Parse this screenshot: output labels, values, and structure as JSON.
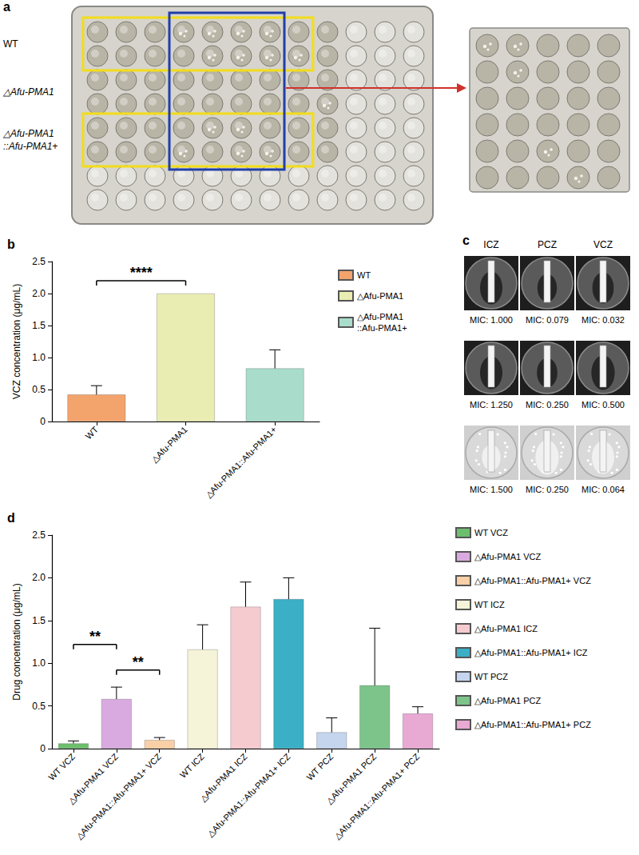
{
  "panel_a": {
    "panel": "a",
    "rows": [
      "WT",
      "△Afu-PMA1",
      "△Afu-PMA1::Afu-PMA1+"
    ]
  },
  "panel_c": {
    "panel": "c",
    "columns": [
      "ICZ",
      "PCZ",
      "VCZ"
    ],
    "rows": [
      [
        "MIC: 1.000",
        "MIC: 0.079",
        "MIC: 0.032"
      ],
      [
        "MIC: 1.250",
        "MIC: 0.250",
        "MIC: 0.500"
      ],
      [
        "MIC: 1.500",
        "MIC: 0.250",
        "MIC: 0.064"
      ]
    ]
  },
  "chart_data": [
    {
      "type": "bar",
      "panel": "b",
      "y_label": "VCZ concentration (μg/mL)",
      "categories": [
        "WT",
        "△Afu-PMA1",
        "△Afu-PMA1::Afu-PMA1+"
      ],
      "values": [
        0.42,
        2.0,
        0.83
      ],
      "errors": [
        0.14,
        null,
        0.29
      ],
      "colors": [
        "#f3a46c",
        "#eaedb2",
        "#a9dccb"
      ],
      "ylim": [
        0,
        2.5
      ],
      "yticks": [
        0,
        {
          "value": 0.5,
          "label": "0.5"
        },
        {
          "value": 1,
          "label": "1.0"
        },
        {
          "value": 1.5,
          "label": "1.5"
        },
        {
          "value": 2,
          "label": "2.0"
        },
        {
          "value": 2.5,
          "label": "2.5"
        }
      ],
      "grid": false,
      "legend": "right",
      "annotations": [
        {
          "text": "****",
          "between": [
            "WT",
            "△Afu-PMA1"
          ]
        }
      ]
    },
    {
      "type": "bar",
      "panel": "d",
      "y_label": "Drug concentration (μg/mL)",
      "categories": [
        "WT VCZ",
        "△Afu-PMA1 VCZ",
        "△Afu-PMA1::Afu-PMA1+ VCZ",
        "WT ICZ",
        "△Afu-PMA1 ICZ",
        "△Afu-PMA1::Afu-PMA1+ ICZ",
        "WT PCZ",
        "△Afu-PMA1 PCZ",
        "△Afu-PMA1::Afu-PMA1+ PCZ"
      ],
      "values": [
        0.06,
        0.58,
        0.1,
        1.16,
        1.66,
        1.75,
        0.19,
        0.74,
        0.41
      ],
      "errors": [
        0.03,
        0.14,
        0.03,
        0.29,
        0.29,
        0.25,
        0.17,
        0.67,
        0.08
      ],
      "colors": [
        "#6dbe6d",
        "#d9aadf",
        "#f8cfa6",
        "#f5f3d8",
        "#f6cbd0",
        "#3aafc6",
        "#c6d5ee",
        "#7dc48a",
        "#e8a9d3"
      ],
      "ylim": [
        0,
        2.5
      ],
      "yticks": [
        0,
        {
          "value": 0.5,
          "label": "0.5"
        },
        {
          "value": 1,
          "label": "1.0"
        },
        {
          "value": 1.5,
          "label": "1.5"
        },
        {
          "value": 2,
          "label": "2.0"
        },
        {
          "value": 2.5,
          "label": "2.5"
        }
      ],
      "grid": false,
      "legend": "right",
      "annotations": [
        {
          "text": "**",
          "between": [
            "WT VCZ",
            "△Afu-PMA1 VCZ"
          ]
        },
        {
          "text": "**",
          "between": [
            "△Afu-PMA1 VCZ",
            "△Afu-PMA1::Afu-PMA1+ VCZ"
          ]
        }
      ]
    }
  ]
}
